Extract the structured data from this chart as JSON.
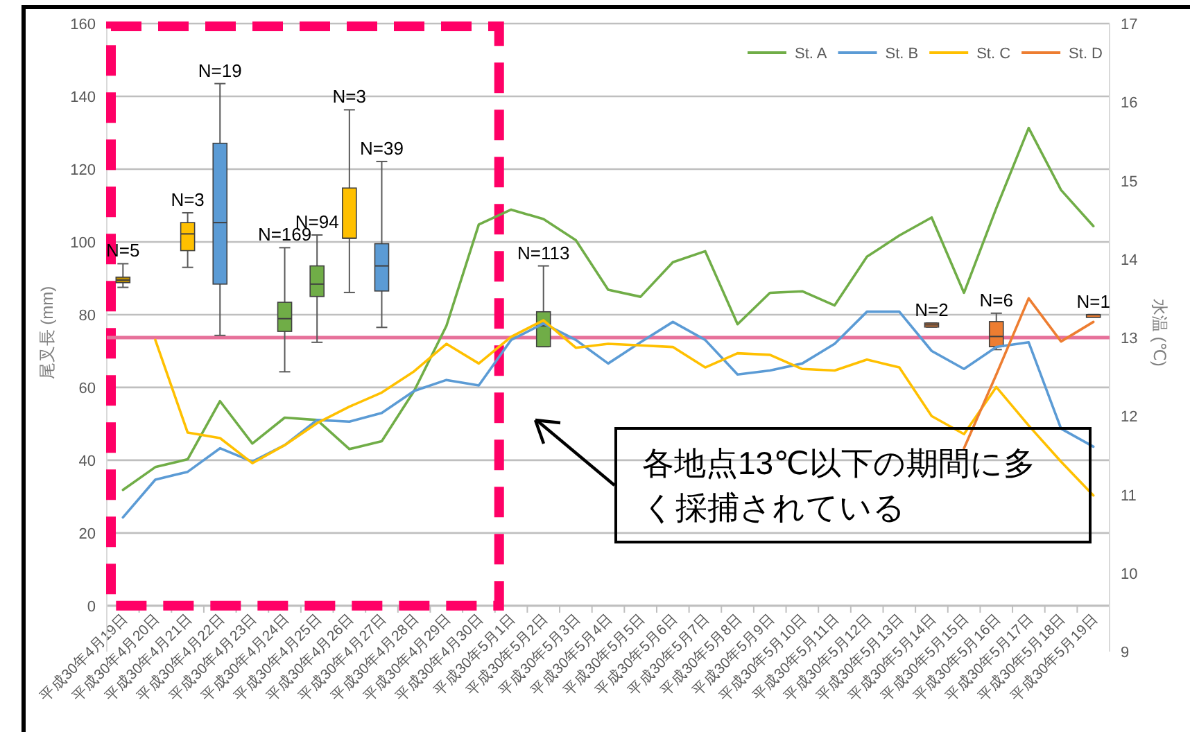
{
  "chart_data": {
    "type": "line",
    "categories": [
      "平成30年4月19日",
      "平成30年4月20日",
      "平成30年4月21日",
      "平成30年4月22日",
      "平成30年4月23日",
      "平成30年4月24日",
      "平成30年4月25日",
      "平成30年4月26日",
      "平成30年4月27日",
      "平成30年4月28日",
      "平成30年4月29日",
      "平成30年4月30日",
      "平成30年5月1日",
      "平成30年5月2日",
      "平成30年5月3日",
      "平成30年5月4日",
      "平成30年5月5日",
      "平成30年5月6日",
      "平成30年5月7日",
      "平成30年5月8日",
      "平成30年5月9日",
      "平成30年5月10日",
      "平成30年5月11日",
      "平成30年5月12日",
      "平成30年5月13日",
      "平成30年5月14日",
      "平成30年5月15日",
      "平成30年5月16日",
      "平成30年5月17日",
      "平成30年5月18日",
      "平成30年5月19日"
    ],
    "ylabel": "尾叉長 (mm)",
    "y2label": "水温 (℃)",
    "ylim": [
      -12.6,
      160
    ],
    "yticks": [
      0,
      20,
      40,
      60,
      80,
      100,
      120,
      140,
      160
    ],
    "y2lim": [
      9,
      17
    ],
    "y2ticks": [
      9,
      10,
      11,
      12,
      13,
      14,
      15,
      16,
      17
    ],
    "grid": "y",
    "legend": "top right",
    "series": [
      {
        "name": "St. A",
        "type": "line",
        "axis": "y2",
        "color": "#70ad47",
        "values": [
          11.06,
          11.35,
          11.45,
          12.19,
          11.65,
          11.98,
          11.95,
          11.58,
          11.68,
          12.32,
          13.15,
          14.44,
          14.63,
          14.51,
          14.24,
          13.61,
          13.52,
          13.96,
          14.1,
          13.17,
          13.57,
          13.59,
          13.41,
          14.03,
          14.3,
          14.53,
          13.57,
          14.65,
          15.67,
          14.88,
          14.42
        ]
      },
      {
        "name": "St. B",
        "type": "line",
        "axis": "y2",
        "color": "#5b9bd5",
        "values": [
          10.71,
          11.19,
          11.29,
          11.59,
          11.42,
          11.63,
          11.95,
          11.93,
          12.04,
          12.32,
          12.46,
          12.39,
          12.97,
          13.18,
          12.97,
          12.67,
          12.94,
          13.2,
          12.97,
          12.53,
          12.58,
          12.67,
          12.92,
          13.33,
          13.33,
          12.83,
          12.6,
          12.88,
          12.94,
          11.84,
          11.61
        ]
      },
      {
        "name": "St. C",
        "type": "line",
        "axis": "y2",
        "color": "#ffc000",
        "values": [
          null,
          12.97,
          11.79,
          11.72,
          11.4,
          11.63,
          11.91,
          12.12,
          12.3,
          12.57,
          12.92,
          12.67,
          13.01,
          13.22,
          12.87,
          12.92,
          12.9,
          12.88,
          12.62,
          12.8,
          12.78,
          12.6,
          12.58,
          12.72,
          12.62,
          12.0,
          11.77,
          12.37,
          11.88,
          11.42,
          10.99
        ]
      },
      {
        "name": "St. D",
        "type": "line",
        "axis": "y2",
        "color": "#ed7d31",
        "values": [
          null,
          null,
          null,
          null,
          null,
          null,
          null,
          null,
          null,
          null,
          null,
          null,
          null,
          null,
          null,
          null,
          null,
          null,
          null,
          null,
          null,
          null,
          null,
          null,
          null,
          null,
          11.59,
          12.53,
          13.5,
          12.95,
          13.2
        ]
      },
      {
        "type": "box",
        "color": "#bf9000",
        "boxes": [
          {
            "low": 87.5,
            "q1": 88.8,
            "median": 89.5,
            "q3": 90.3,
            "high": 94
          },
          null,
          null,
          null,
          null,
          null,
          null,
          null,
          null,
          null,
          null,
          null,
          null,
          null,
          null,
          null,
          null,
          null,
          null,
          null,
          null,
          null,
          null,
          null,
          null,
          null,
          null,
          null,
          null,
          null,
          null
        ]
      },
      {
        "type": "box",
        "color": "#ffc000",
        "boxes": [
          null,
          null,
          {
            "low": 93,
            "q1": 97.6,
            "median": 102.2,
            "q3": 105.3,
            "high": 108
          },
          null,
          null,
          null,
          null,
          {
            "low": 86.1,
            "q1": 101,
            "median": 101,
            "q3": 114.8,
            "high": 136.3
          },
          null,
          null,
          null,
          null,
          null,
          null,
          null,
          null,
          null,
          null,
          null,
          null,
          null,
          null,
          null,
          null,
          null,
          null,
          null,
          null,
          null,
          null,
          null
        ]
      },
      {
        "type": "box",
        "color": "#5b9bd5",
        "boxes": [
          null,
          null,
          null,
          {
            "low": 74.3,
            "q1": 88.4,
            "median": 105.3,
            "q3": 127.1,
            "high": 143.5
          },
          null,
          null,
          null,
          null,
          {
            "low": 76.5,
            "q1": 86.5,
            "median": 93.4,
            "q3": 99.5,
            "high": 122.1
          },
          null,
          null,
          null,
          null,
          null,
          null,
          null,
          null,
          null,
          null,
          null,
          null,
          null,
          null,
          null,
          null,
          null,
          null,
          null,
          null,
          null,
          null
        ]
      },
      {
        "type": "box",
        "color": "#70ad47",
        "boxes": [
          null,
          null,
          null,
          null,
          null,
          {
            "low": 64.3,
            "q1": 75.4,
            "median": 78.9,
            "q3": 83.4,
            "high": 98.4
          },
          {
            "low": 72.4,
            "q1": 85,
            "median": 88.4,
            "q3": 93.4,
            "high": 101.9
          },
          null,
          null,
          null,
          null,
          null,
          null,
          {
            "low": 71.2,
            "q1": 71.2,
            "median": 76.9,
            "q3": 80.8,
            "high": 93.4
          },
          null,
          null,
          null,
          null,
          null,
          null,
          null,
          null,
          null,
          null,
          null,
          null,
          null,
          null,
          null,
          null,
          null
        ]
      },
      {
        "type": "box",
        "color": "#ed7d31",
        "boxes": [
          null,
          null,
          null,
          null,
          null,
          null,
          null,
          null,
          null,
          null,
          null,
          null,
          null,
          null,
          null,
          null,
          null,
          null,
          null,
          null,
          null,
          null,
          null,
          null,
          null,
          {
            "low": 76.6,
            "q1": 76.6,
            "median": 77.2,
            "q3": 77.7,
            "high": 77.7
          },
          null,
          {
            "low": 70.4,
            "q1": 71.2,
            "median": 74,
            "q3": 78.1,
            "high": 80.4
          },
          null,
          null,
          {
            "low": 80,
            "q1": 80,
            "median": 80,
            "q3": 80,
            "high": 80
          }
        ]
      }
    ],
    "ref_lines": [
      {
        "axis": "y2",
        "value": 13,
        "color": "#e6719a"
      }
    ],
    "annotations": [
      {
        "text": "N=5",
        "x": "平成30年4月19日",
        "y": 94
      },
      {
        "text": "N=3",
        "x": "平成30年4月21日",
        "y": 108
      },
      {
        "text": "N=19",
        "x": "平成30年4月22日",
        "y": 143.5
      },
      {
        "text": "N=169",
        "x": "平成30年4月24日",
        "y": 98.4
      },
      {
        "text": "N=94",
        "x": "平成30年4月25日",
        "y": 101.9
      },
      {
        "text": "N=3",
        "x": "平成30年4月26日",
        "y": 136.3
      },
      {
        "text": "N=39",
        "x": "平成30年4月27日",
        "y": 122.1
      },
      {
        "text": "N=113",
        "x": "平成30年5月2日",
        "y": 93.4
      },
      {
        "text": "N=2",
        "x": "平成30年5月14日",
        "y": 77.7
      },
      {
        "text": "N=6",
        "x": "平成30年5月16日",
        "y": 80.4
      },
      {
        "text": "N=1",
        "x": "平成30年5月19日",
        "y": 80
      },
      "各地点13℃以下の期間に多く採捕されている"
    ]
  }
}
